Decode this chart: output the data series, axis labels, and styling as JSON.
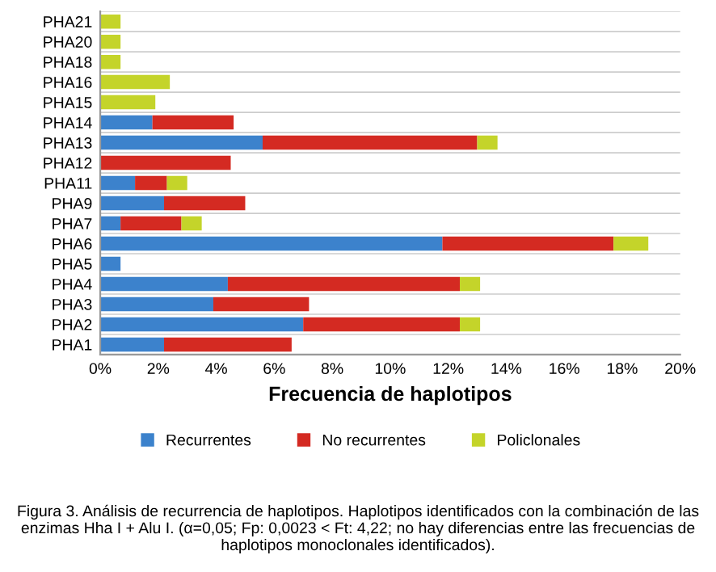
{
  "chart_data": {
    "type": "bar",
    "orientation": "horizontal",
    "stacked": true,
    "categories": [
      "PHA21",
      "PHA20",
      "PHA18",
      "PHA16",
      "PHA15",
      "PHA14",
      "PHA13",
      "PHA12",
      "PHA11",
      "PHA9",
      "PHA7",
      "PHA6",
      "PHA5",
      "PHA4",
      "PHA3",
      "PHA2",
      "PHA1"
    ],
    "series": [
      {
        "name": "Recurrentes",
        "color": "#3c82cc",
        "values": [
          null,
          null,
          null,
          null,
          null,
          1.8,
          5.6,
          null,
          1.2,
          2.2,
          0.7,
          11.8,
          0.7,
          4.4,
          3.9,
          7.0,
          2.2
        ]
      },
      {
        "name": "No recurrentes",
        "color": "#d42a22",
        "values": [
          null,
          null,
          null,
          null,
          null,
          2.8,
          7.4,
          4.5,
          1.1,
          2.8,
          2.1,
          5.9,
          null,
          8.0,
          3.3,
          5.4,
          4.4
        ]
      },
      {
        "name": "Policlonales",
        "color": "#c4d42a",
        "values": [
          0.7,
          0.7,
          0.7,
          2.4,
          1.9,
          null,
          0.7,
          null,
          0.7,
          null,
          0.7,
          1.2,
          null,
          0.7,
          null,
          0.7,
          null
        ]
      }
    ],
    "xlabel": "Frecuencia de haplotipos",
    "xlim": [
      0,
      20
    ],
    "xticks": [
      {
        "value": 0,
        "label": "0%"
      },
      {
        "value": 2,
        "label": "2%"
      },
      {
        "value": 4,
        "label": "4%"
      },
      {
        "value": 6,
        "label": "6%"
      },
      {
        "value": 8,
        "label": "8%"
      },
      {
        "value": 10,
        "label": "10%"
      },
      {
        "value": 12,
        "label": "12%"
      },
      {
        "value": 14,
        "label": "14%"
      },
      {
        "value": 16,
        "label": "16%"
      },
      {
        "value": 18,
        "label": "18%"
      },
      {
        "value": 20,
        "label": "20%"
      }
    ],
    "grid": "y",
    "legend": "bottom",
    "annotations": [
      "Figura 3. Análisis de recurrencia de haplotipos. Haplotipos identificados con la combinación de las enzimas Hha I + Alu I. (α=0,05; Fp: 0,0023 < Ft: 4,22; no hay diferencias entre las frecuencias de haplotipos monoclonales identificados)."
    ]
  }
}
